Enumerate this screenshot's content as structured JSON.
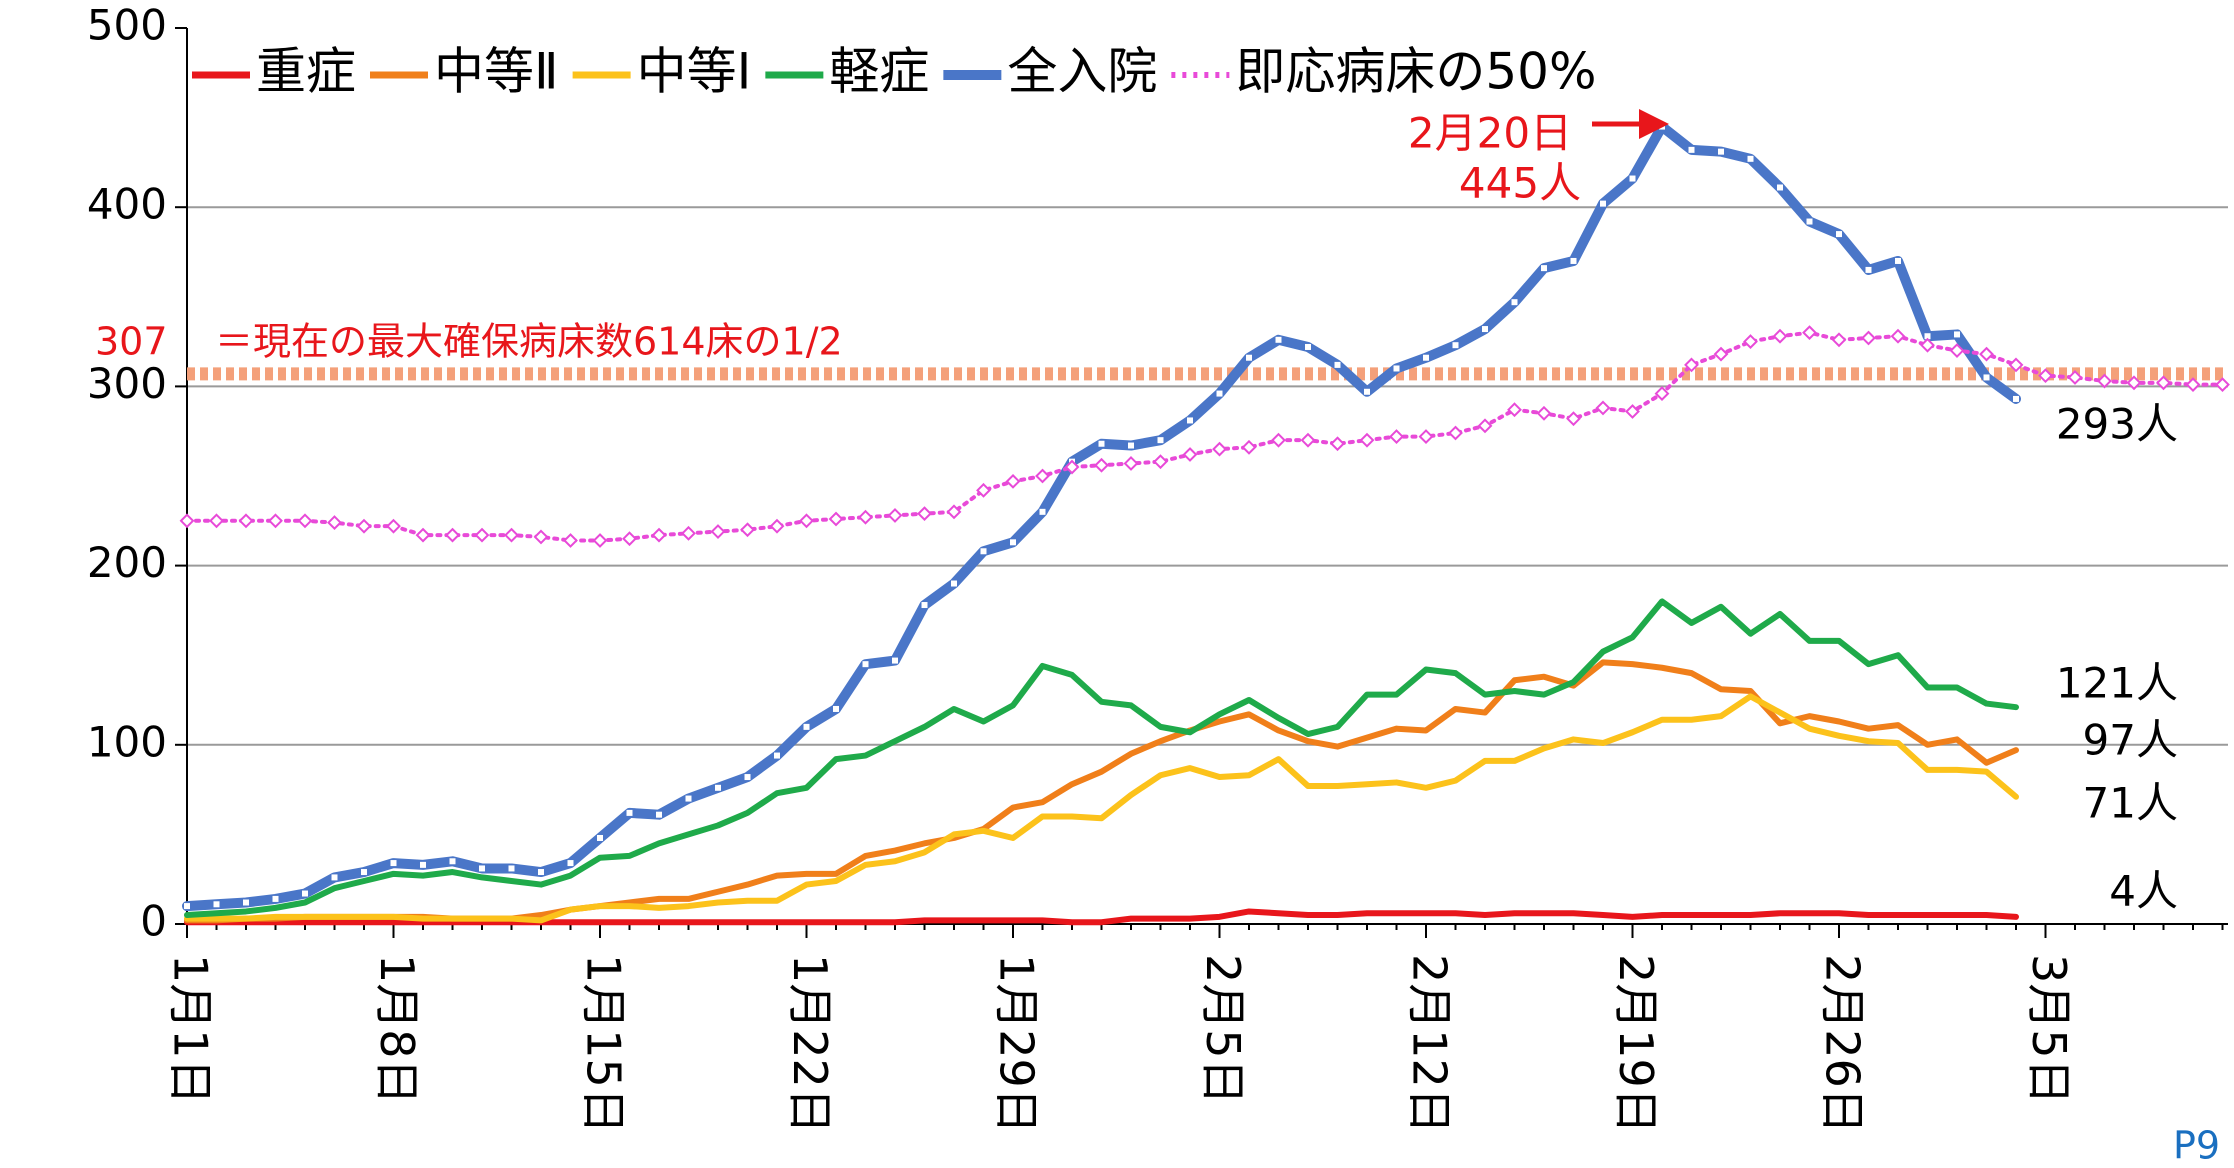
{
  "chart_data": {
    "type": "line",
    "categories": [
      "1月1日",
      null,
      null,
      null,
      null,
      null,
      null,
      "1月8日",
      null,
      null,
      null,
      null,
      null,
      null,
      "1月15日",
      null,
      null,
      null,
      null,
      null,
      null,
      "1月22日",
      null,
      null,
      null,
      null,
      null,
      null,
      "1月29日",
      null,
      null,
      null,
      null,
      null,
      null,
      "2月5日",
      null,
      null,
      null,
      null,
      null,
      null,
      "2月12日",
      null,
      null,
      null,
      null,
      null,
      null,
      "2月19日",
      null,
      null,
      null,
      null,
      null,
      null,
      "2月26日",
      null,
      null,
      null,
      null,
      null,
      null,
      "3月5日",
      null,
      null,
      null,
      null,
      null,
      null
    ],
    "ylim": [
      0,
      500
    ],
    "yticks": [
      0,
      100,
      200,
      300,
      400,
      500
    ],
    "grid": true,
    "legend": "top",
    "series": [
      {
        "name": "重症",
        "color": "#e8161b",
        "end_label": "4人",
        "values": [
          1,
          1,
          1,
          1,
          1,
          1,
          1,
          1,
          1,
          1,
          1,
          1,
          1,
          1,
          1,
          1,
          1,
          1,
          1,
          1,
          1,
          1,
          1,
          1,
          1,
          2,
          2,
          2,
          2,
          2,
          1,
          1,
          3,
          3,
          3,
          4,
          7,
          6,
          5,
          5,
          6,
          6,
          6,
          6,
          5,
          6,
          6,
          6,
          5,
          4,
          5,
          5,
          5,
          5,
          6,
          6,
          6,
          5,
          5,
          5,
          5,
          5,
          4,
          null,
          null,
          null,
          null,
          null,
          null,
          null
        ]
      },
      {
        "name": "中等Ⅱ",
        "color": "#f07f1a",
        "end_label": "97人",
        "values": [
          2,
          2,
          3,
          3,
          4,
          4,
          4,
          4,
          4,
          3,
          3,
          3,
          5,
          8,
          10,
          12,
          14,
          14,
          18,
          22,
          27,
          28,
          28,
          38,
          41,
          45,
          48,
          53,
          65,
          68,
          78,
          85,
          95,
          102,
          108,
          113,
          117,
          108,
          102,
          99,
          104,
          109,
          108,
          120,
          118,
          136,
          138,
          133,
          146,
          145,
          143,
          140,
          131,
          130,
          112,
          116,
          113,
          109,
          111,
          100,
          103,
          90,
          97,
          null,
          null,
          null,
          null,
          null,
          null,
          null
        ]
      },
      {
        "name": "中等Ⅰ",
        "color": "#fcc21b",
        "end_label": "71人",
        "values": [
          3,
          3,
          3,
          4,
          4,
          4,
          4,
          4,
          3,
          3,
          3,
          3,
          2,
          8,
          10,
          10,
          9,
          10,
          12,
          13,
          13,
          22,
          24,
          33,
          35,
          40,
          50,
          52,
          48,
          60,
          60,
          59,
          72,
          83,
          87,
          82,
          83,
          92,
          77,
          77,
          78,
          79,
          76,
          80,
          91,
          91,
          98,
          103,
          101,
          107,
          114,
          114,
          116,
          127,
          118,
          109,
          105,
          102,
          101,
          86,
          86,
          85,
          71,
          null,
          null,
          null,
          null,
          null,
          null,
          null
        ]
      },
      {
        "name": "軽症",
        "color": "#1faa4a",
        "end_label": "121人",
        "values": [
          5,
          6,
          7,
          9,
          12,
          20,
          24,
          28,
          27,
          29,
          26,
          24,
          22,
          27,
          37,
          38,
          45,
          50,
          55,
          62,
          73,
          76,
          92,
          94,
          102,
          110,
          120,
          113,
          122,
          144,
          139,
          124,
          122,
          110,
          107,
          117,
          125,
          115,
          106,
          110,
          128,
          128,
          142,
          140,
          128,
          130,
          128,
          135,
          152,
          160,
          180,
          168,
          177,
          162,
          173,
          158,
          158,
          145,
          150,
          132,
          132,
          123,
          121,
          null,
          null,
          null,
          null,
          null,
          null,
          null
        ]
      },
      {
        "name": "全入院",
        "color": "#4a76c8",
        "end_label": "293人",
        "marker": "square",
        "values": [
          10,
          11,
          12,
          14,
          17,
          26,
          29,
          34,
          33,
          35,
          31,
          31,
          29,
          34,
          48,
          62,
          61,
          70,
          76,
          82,
          94,
          110,
          120,
          145,
          147,
          178,
          190,
          208,
          213,
          230,
          258,
          268,
          267,
          270,
          281,
          296,
          316,
          326,
          322,
          312,
          297,
          310,
          316,
          323,
          332,
          347,
          366,
          370,
          402,
          416,
          445,
          432,
          431,
          427,
          411,
          392,
          385,
          365,
          370,
          328,
          329,
          305,
          293,
          null,
          null,
          null,
          null,
          null,
          null,
          null
        ]
      },
      {
        "name": "即応病床の50%",
        "color": "#e84ad8",
        "line_style": "dotted",
        "marker": "diamond",
        "values": [
          225,
          225,
          225,
          225,
          225,
          224,
          222,
          222,
          217,
          217,
          217,
          217,
          216,
          214,
          214,
          215,
          217,
          218,
          219,
          220,
          222,
          225,
          226,
          227,
          228,
          229,
          230,
          242,
          247,
          250,
          255,
          256,
          257,
          258,
          262,
          265,
          266,
          270,
          270,
          268,
          270,
          272,
          272,
          274,
          278,
          287,
          285,
          282,
          288,
          286,
          296,
          312,
          318,
          325,
          328,
          330,
          326,
          327,
          328,
          323,
          320,
          318,
          312,
          306,
          305,
          303,
          302,
          302,
          301,
          301
        ]
      }
    ],
    "reference_line": {
      "value": 307,
      "color": "#f4a07a",
      "text": "＝現在の最大確保病床数614床の1/2"
    },
    "annotations": [
      {
        "text": "2月20日"
      },
      {
        "text": "445人"
      }
    ],
    "page_number": "P9"
  }
}
